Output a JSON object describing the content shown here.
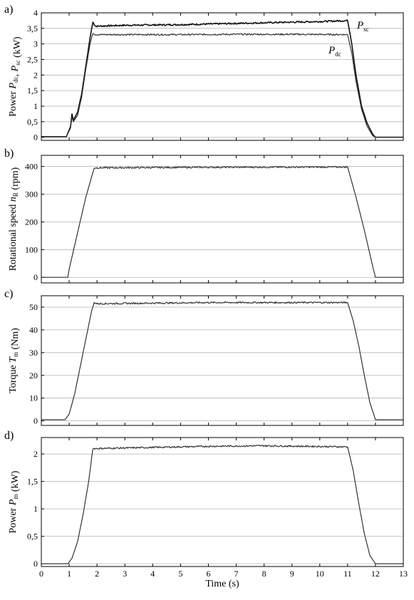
{
  "chart_data": [
    {
      "type": "line",
      "panel": "a)",
      "ylabel_main": "Power ",
      "ylabel_parts": [
        {
          "text": "Power ",
          "italic": false
        },
        {
          "text": "P",
          "italic": true
        },
        {
          "text": "dc",
          "sub": true
        },
        {
          "text": ", ",
          "italic": false
        },
        {
          "text": "P",
          "italic": true
        },
        {
          "text": "sc",
          "sub": true
        },
        {
          "text": " (kW)",
          "italic": false
        }
      ],
      "ylim": [
        -0.1,
        4.0
      ],
      "yticks": [
        "0",
        "0,5",
        "1",
        "1,5",
        "2",
        "2,5",
        "3",
        "3,5",
        "4"
      ],
      "ytick_values": [
        0,
        0.5,
        1,
        1.5,
        2,
        2.5,
        3,
        3.5,
        4
      ],
      "xlim": [
        0,
        13
      ],
      "grid": true,
      "series": [
        {
          "name": "Psc",
          "label_main": "P",
          "label_sub": "sc",
          "points": [
            [
              0,
              0.02
            ],
            [
              0.9,
              0.02
            ],
            [
              1.05,
              0.35
            ],
            [
              1.1,
              0.75
            ],
            [
              1.15,
              0.55
            ],
            [
              1.3,
              0.8
            ],
            [
              1.45,
              1.4
            ],
            [
              1.6,
              2.3
            ],
            [
              1.75,
              3.2
            ],
            [
              1.85,
              3.7
            ],
            [
              1.95,
              3.57
            ],
            [
              3,
              3.6
            ],
            [
              5,
              3.62
            ],
            [
              7,
              3.66
            ],
            [
              9,
              3.7
            ],
            [
              10,
              3.72
            ],
            [
              11,
              3.75
            ],
            [
              11.15,
              3.0
            ],
            [
              11.3,
              2.0
            ],
            [
              11.5,
              1.0
            ],
            [
              11.7,
              0.45
            ],
            [
              11.9,
              0.1
            ],
            [
              12.0,
              0.0
            ],
            [
              13,
              0.0
            ]
          ]
        },
        {
          "name": "Pdc",
          "label_main": "P",
          "label_sub": "dc",
          "points": [
            [
              0,
              0.02
            ],
            [
              0.9,
              0.02
            ],
            [
              1.05,
              0.3
            ],
            [
              1.1,
              0.65
            ],
            [
              1.15,
              0.5
            ],
            [
              1.3,
              0.7
            ],
            [
              1.45,
              1.3
            ],
            [
              1.6,
              2.2
            ],
            [
              1.75,
              3.0
            ],
            [
              1.85,
              3.35
            ],
            [
              1.95,
              3.3
            ],
            [
              3,
              3.3
            ],
            [
              5,
              3.3
            ],
            [
              7,
              3.31
            ],
            [
              9,
              3.31
            ],
            [
              11,
              3.3
            ],
            [
              11.15,
              2.7
            ],
            [
              11.3,
              1.8
            ],
            [
              11.5,
              0.9
            ],
            [
              11.7,
              0.35
            ],
            [
              11.9,
              0.05
            ],
            [
              12.0,
              0.0
            ],
            [
              13,
              0.0
            ]
          ]
        }
      ]
    },
    {
      "type": "line",
      "panel": "b)",
      "ylabel_parts": [
        {
          "text": "Rotational speed ",
          "italic": false
        },
        {
          "text": "n",
          "italic": true
        },
        {
          "text": "R",
          "sub": true
        },
        {
          "text": " (rpm)",
          "italic": false
        }
      ],
      "ylim": [
        -20,
        440
      ],
      "yticks": [
        "0",
        "100",
        "200",
        "300",
        "400"
      ],
      "ytick_values": [
        0,
        100,
        200,
        300,
        400
      ],
      "xlim": [
        0,
        13
      ],
      "grid": true,
      "series": [
        {
          "name": "nR",
          "points": [
            [
              0,
              0
            ],
            [
              0.95,
              0
            ],
            [
              1.0,
              30
            ],
            [
              1.3,
              160
            ],
            [
              1.6,
              290
            ],
            [
              1.9,
              395
            ],
            [
              2.0,
              395
            ],
            [
              6,
              397
            ],
            [
              11.0,
              398
            ],
            [
              11.3,
              290
            ],
            [
              11.6,
              170
            ],
            [
              11.9,
              40
            ],
            [
              12.0,
              0
            ],
            [
              13,
              0
            ]
          ]
        }
      ]
    },
    {
      "type": "line",
      "panel": "c)",
      "ylabel_parts": [
        {
          "text": "Torque ",
          "italic": false
        },
        {
          "text": "T",
          "italic": true
        },
        {
          "text": "m",
          "sub": true
        },
        {
          "text": " (Nm)",
          "italic": false
        }
      ],
      "ylim": [
        -2,
        55
      ],
      "yticks": [
        "0",
        "10",
        "20",
        "30",
        "40",
        "50"
      ],
      "ytick_values": [
        0,
        10,
        20,
        30,
        40,
        50
      ],
      "xlim": [
        0,
        13
      ],
      "grid": true,
      "series": [
        {
          "name": "Tm",
          "points": [
            [
              0,
              0.5
            ],
            [
              0.85,
              0.5
            ],
            [
              1.0,
              3
            ],
            [
              1.2,
              12
            ],
            [
              1.4,
              24
            ],
            [
              1.6,
              36
            ],
            [
              1.8,
              48
            ],
            [
              1.9,
              52
            ],
            [
              2.0,
              51.5
            ],
            [
              6,
              52
            ],
            [
              11.0,
              52
            ],
            [
              11.2,
              44
            ],
            [
              11.4,
              33
            ],
            [
              11.6,
              20
            ],
            [
              11.8,
              8
            ],
            [
              12.0,
              0.5
            ],
            [
              13,
              0.5
            ]
          ]
        }
      ]
    },
    {
      "type": "line",
      "panel": "d)",
      "ylabel_parts": [
        {
          "text": "Power ",
          "italic": false
        },
        {
          "text": "P",
          "italic": true
        },
        {
          "text": "m",
          "sub": true
        },
        {
          "text": " (kW)",
          "italic": false
        }
      ],
      "ylim": [
        -0.05,
        2.3
      ],
      "yticks": [
        "0",
        "0,5",
        "1",
        "1,5",
        "2"
      ],
      "ytick_values": [
        0,
        0.5,
        1,
        1.5,
        2
      ],
      "xlim": [
        0,
        13
      ],
      "xlabel": "Time (s)",
      "xticks": [
        "0",
        "1",
        "2",
        "3",
        "4",
        "5",
        "6",
        "7",
        "8",
        "9",
        "10",
        "11",
        "12",
        "13"
      ],
      "xtick_values": [
        0,
        1,
        2,
        3,
        4,
        5,
        6,
        7,
        8,
        9,
        10,
        11,
        12,
        13
      ],
      "grid": true,
      "series": [
        {
          "name": "Pm",
          "points": [
            [
              0,
              0
            ],
            [
              0.95,
              0
            ],
            [
              1.1,
              0.1
            ],
            [
              1.3,
              0.4
            ],
            [
              1.5,
              0.9
            ],
            [
              1.7,
              1.5
            ],
            [
              1.85,
              2.1
            ],
            [
              2.0,
              2.1
            ],
            [
              6,
              2.14
            ],
            [
              8,
              2.15
            ],
            [
              11.0,
              2.13
            ],
            [
              11.2,
              1.7
            ],
            [
              11.4,
              1.1
            ],
            [
              11.6,
              0.55
            ],
            [
              11.8,
              0.15
            ],
            [
              12.0,
              0
            ],
            [
              13,
              0
            ]
          ]
        }
      ]
    }
  ]
}
